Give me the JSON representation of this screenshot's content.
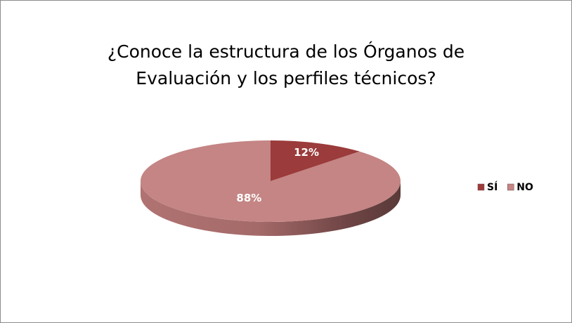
{
  "chart_data": {
    "type": "pie",
    "title": "¿Conoce la estructura de los Órganos de Evaluación y los perfiles técnicos?",
    "categories": [
      "SÍ",
      "NO"
    ],
    "values": [
      12,
      88
    ],
    "value_labels": [
      "12%",
      "88%"
    ],
    "colors": [
      "#9b3b3b",
      "#c48584"
    ],
    "legend": "right"
  }
}
